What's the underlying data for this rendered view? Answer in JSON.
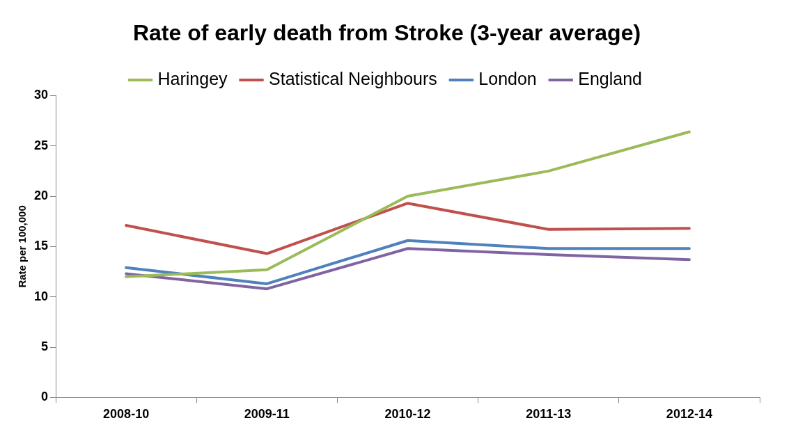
{
  "chart_data": {
    "type": "line",
    "title": "Rate of early death from Stroke (3-year average)",
    "ylabel": "Rate per 100,000",
    "categories": [
      "2008-10",
      "2009-11",
      "2010-12",
      "2011-13",
      "2012-14"
    ],
    "series": [
      {
        "name": "Haringey",
        "color": "#9bbb59",
        "values": [
          12.0,
          12.7,
          20.0,
          22.5,
          26.4
        ]
      },
      {
        "name": "Statistical Neighbours",
        "color": "#c0504d",
        "values": [
          17.1,
          14.3,
          19.3,
          16.7,
          16.8
        ]
      },
      {
        "name": "London",
        "color": "#4f81bd",
        "values": [
          12.9,
          11.3,
          15.6,
          14.8,
          14.8
        ]
      },
      {
        "name": "England",
        "color": "#8064a2",
        "values": [
          12.3,
          10.8,
          14.8,
          14.2,
          13.7
        ]
      }
    ],
    "ylim": [
      0,
      30
    ],
    "yticks": [
      0,
      5,
      10,
      15,
      20,
      25,
      30
    ],
    "grid": false,
    "legend": "top",
    "marker": "none",
    "line_style": "solid"
  }
}
